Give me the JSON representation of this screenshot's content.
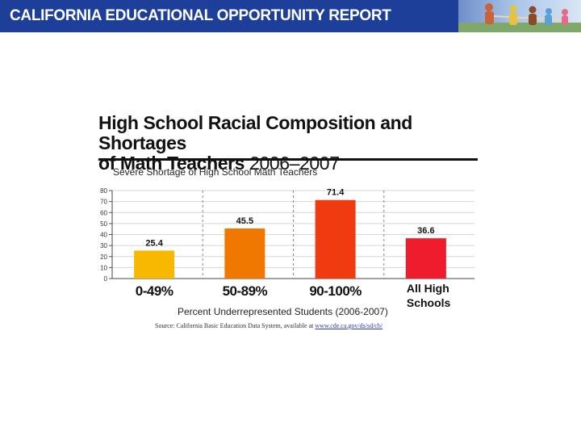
{
  "banner": {
    "title": "CALIFORNIA EDUCATIONAL OPPORTUNITY REPORT",
    "background": "#1d3f9a",
    "photo": "children-running-photo"
  },
  "chart_title": {
    "line1": "High School Racial Composition and Shortages",
    "line2_bold": "of Math Teachers",
    "line2_years": "2006–2007"
  },
  "source": {
    "text": "Source:  California Basic Education Data System, available at",
    "link": "www.cde.ca.gov/ds/sd/cb/"
  },
  "chart_data": {
    "type": "bar",
    "title": "Severe Shortage of High School Math Teachers",
    "xlabel": "Percent Underrepresented Students (2006-2007)",
    "ylabel": "",
    "ylim": [
      0,
      80
    ],
    "yticks": [
      "0",
      "10",
      "20",
      "30",
      "40",
      "50",
      "60",
      "70",
      "80"
    ],
    "grid": true,
    "categories": [
      "0-49%",
      "50-89%",
      "90-100%",
      "All High Schools"
    ],
    "values": [
      25.4,
      45.5,
      71.4,
      36.6
    ],
    "data_labels": [
      "25.4",
      "45.5",
      "71.4",
      "36.6"
    ],
    "colors": [
      "#f9b800",
      "#f07800",
      "#f03a10",
      "#ee1c2c"
    ]
  }
}
